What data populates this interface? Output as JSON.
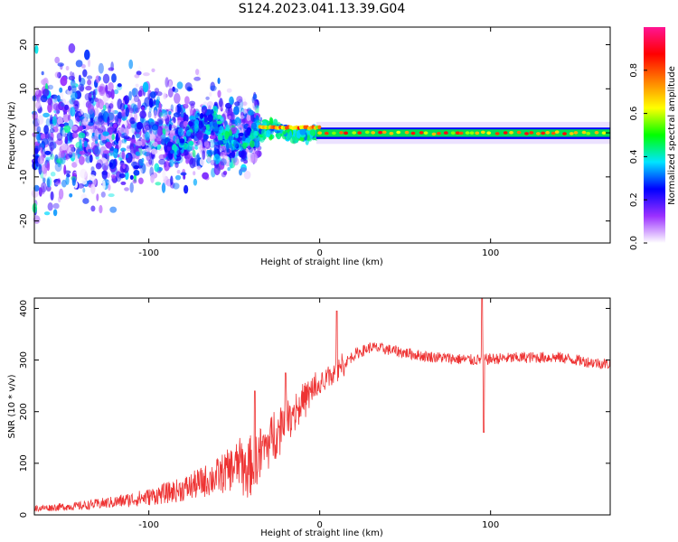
{
  "title": "S124.2023.041.13.39.G04",
  "chart_data": [
    {
      "type": "heatmap",
      "name": "spectrogram",
      "xlabel": "Height of straight line (km)",
      "ylabel": "Frequency (Hz)",
      "xlim": [
        -167,
        170
      ],
      "ylim": [
        -25,
        24
      ],
      "x_ticks": [
        -100,
        0,
        100
      ],
      "y_ticks": [
        -20,
        -10,
        0,
        10,
        20
      ],
      "colorbar": {
        "label": "Normalized spectral amplitude",
        "range": [
          0,
          1
        ],
        "ticks": [
          0.0,
          0.2,
          0.4,
          0.6,
          0.8
        ],
        "tick_labels": [
          "0.0",
          "0.2",
          "0.4",
          "0.6",
          "0.8"
        ],
        "colors": [
          "#ffffff",
          "#9b30ff",
          "#0000ff",
          "#00e5ff",
          "#00ff00",
          "#ffff00",
          "#ff8000",
          "#ff0000",
          "#ff1493"
        ]
      },
      "features": {
        "noise_region_x": [
          -167,
          -35
        ],
        "transition_x": [
          -35,
          0
        ],
        "carrier_line_x": [
          0,
          170
        ],
        "carrier_frequency": 0
      }
    },
    {
      "type": "line",
      "name": "snr",
      "xlabel": "Height of straight line (km)",
      "ylabel": "SNR (10 * v/v)",
      "xlim": [
        -167,
        170
      ],
      "ylim": [
        0,
        420
      ],
      "x_ticks": [
        -100,
        0,
        100
      ],
      "y_ticks": [
        0,
        100,
        200,
        300,
        400
      ],
      "color": "#ee3333",
      "envelope": {
        "x": [
          -167,
          -140,
          -120,
          -100,
          -80,
          -60,
          -50,
          -40,
          -30,
          -20,
          -10,
          0,
          10,
          20,
          30,
          40,
          60,
          80,
          90,
          100,
          120,
          140,
          160,
          170
        ],
        "y": [
          10,
          14,
          20,
          28,
          40,
          60,
          75,
          95,
          140,
          185,
          220,
          250,
          280,
          310,
          325,
          320,
          308,
          302,
          300,
          302,
          305,
          305,
          295,
          292
        ]
      },
      "spikes": [
        {
          "x": 10,
          "y": 395
        },
        {
          "x": 95,
          "y": 420
        },
        {
          "x": 96,
          "y": 160
        },
        {
          "x": -38,
          "y": 240
        },
        {
          "x": -20,
          "y": 275
        }
      ]
    }
  ]
}
